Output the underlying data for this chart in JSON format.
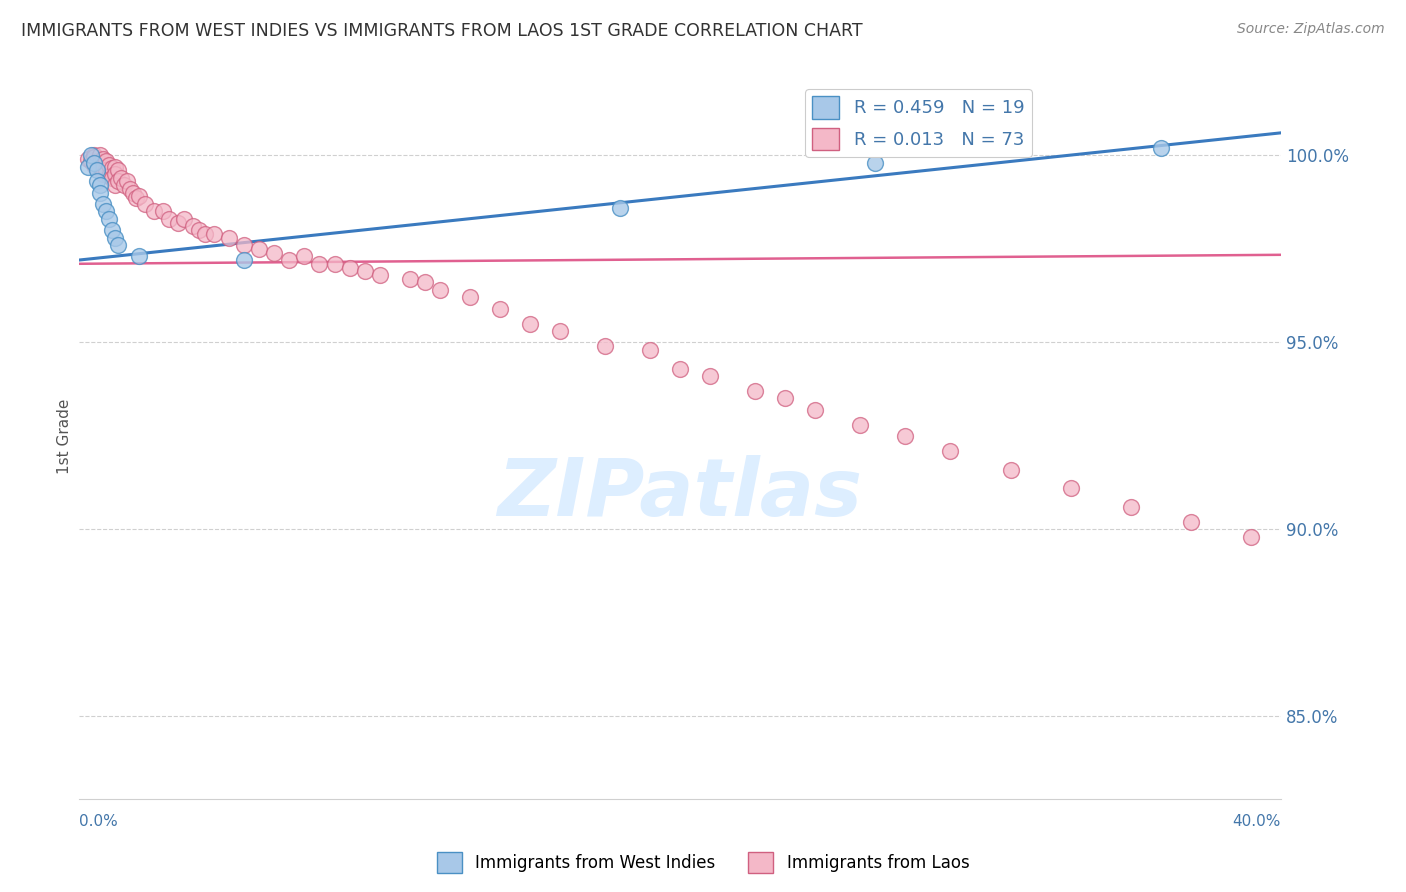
{
  "title": "IMMIGRANTS FROM WEST INDIES VS IMMIGRANTS FROM LAOS 1ST GRADE CORRELATION CHART",
  "source": "Source: ZipAtlas.com",
  "ylabel": "1st Grade",
  "xlim": [
    0.0,
    0.4
  ],
  "ylim": [
    0.828,
    1.022
  ],
  "ytick_values": [
    1.0,
    0.95,
    0.9,
    0.85
  ],
  "ytick_labels": [
    "100.0%",
    "95.0%",
    "90.0%",
    "85.0%"
  ],
  "legend_blue_label": "R = 0.459   N = 19",
  "legend_pink_label": "R = 0.013   N = 73",
  "blue_line_slope": 0.085,
  "blue_line_intercept": 0.972,
  "pink_line_slope": 0.006,
  "pink_line_intercept": 0.971,
  "blue_scatter_x": [
    0.003,
    0.004,
    0.005,
    0.006,
    0.006,
    0.007,
    0.007,
    0.008,
    0.009,
    0.01,
    0.011,
    0.012,
    0.013,
    0.02,
    0.055,
    0.18,
    0.255,
    0.265,
    0.36
  ],
  "blue_scatter_y": [
    0.997,
    1.0,
    0.998,
    0.996,
    0.993,
    0.992,
    0.99,
    0.987,
    0.985,
    0.983,
    0.98,
    0.978,
    0.976,
    0.973,
    0.972,
    0.986,
    1.004,
    0.998,
    1.002
  ],
  "pink_scatter_x": [
    0.003,
    0.004,
    0.005,
    0.005,
    0.005,
    0.006,
    0.006,
    0.007,
    0.007,
    0.008,
    0.008,
    0.008,
    0.009,
    0.009,
    0.01,
    0.01,
    0.011,
    0.011,
    0.012,
    0.012,
    0.012,
    0.013,
    0.013,
    0.014,
    0.015,
    0.016,
    0.017,
    0.018,
    0.019,
    0.02,
    0.022,
    0.025,
    0.028,
    0.03,
    0.033,
    0.035,
    0.038,
    0.04,
    0.042,
    0.045,
    0.05,
    0.055,
    0.06,
    0.065,
    0.07,
    0.075,
    0.08,
    0.085,
    0.09,
    0.095,
    0.1,
    0.11,
    0.115,
    0.12,
    0.13,
    0.14,
    0.15,
    0.16,
    0.175,
    0.19,
    0.2,
    0.21,
    0.225,
    0.235,
    0.245,
    0.26,
    0.275,
    0.29,
    0.31,
    0.33,
    0.35,
    0.37,
    0.39
  ],
  "pink_scatter_y": [
    0.999,
    0.9985,
    1.0,
    0.9995,
    0.9975,
    0.9985,
    0.997,
    1.0,
    0.998,
    0.999,
    0.9965,
    0.995,
    0.9985,
    0.996,
    0.9975,
    0.9945,
    0.9965,
    0.994,
    0.997,
    0.995,
    0.992,
    0.996,
    0.993,
    0.994,
    0.992,
    0.993,
    0.991,
    0.99,
    0.9885,
    0.989,
    0.987,
    0.985,
    0.985,
    0.983,
    0.982,
    0.983,
    0.981,
    0.98,
    0.979,
    0.979,
    0.978,
    0.976,
    0.975,
    0.974,
    0.972,
    0.973,
    0.971,
    0.971,
    0.97,
    0.969,
    0.968,
    0.967,
    0.966,
    0.964,
    0.962,
    0.959,
    0.955,
    0.953,
    0.949,
    0.948,
    0.943,
    0.941,
    0.937,
    0.935,
    0.932,
    0.928,
    0.925,
    0.921,
    0.916,
    0.911,
    0.906,
    0.902,
    0.898
  ],
  "background_color": "#ffffff",
  "blue_scatter_color": "#a8c8e8",
  "blue_scatter_edge": "#4a90c4",
  "pink_scatter_color": "#f4b8c8",
  "pink_scatter_edge": "#d06080",
  "blue_line_color": "#3a7abf",
  "pink_line_color": "#e06090",
  "grid_color": "#d0d0d0",
  "axis_label_color": "#4477aa",
  "title_color": "#333333",
  "source_color": "#888888",
  "watermark_color": "#ddeeff",
  "watermark_text": "ZIPatlas"
}
